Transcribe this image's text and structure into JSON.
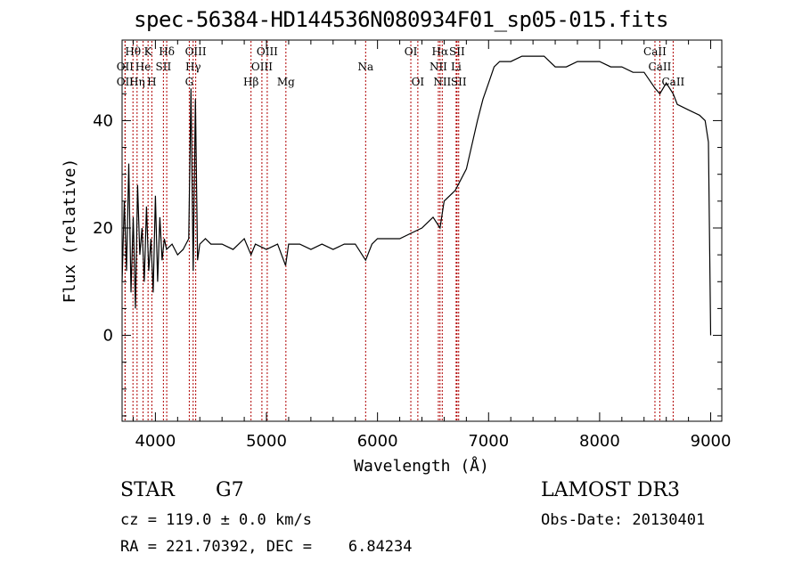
{
  "title": "spec-56384-HD144536N080934F01_sp05-015.fits",
  "info": {
    "object_class": "STAR",
    "subclass": "G7",
    "survey": "LAMOST DR3",
    "cz": "cz = 119.0 ± 0.0 km/s",
    "obs_date": "Obs-Date: 20130401",
    "radec": "RA = 221.70392, DEC =    6.84234"
  },
  "chart_data": {
    "type": "line",
    "xlabel": "Wavelength (Å)",
    "ylabel": "Flux (relative)",
    "xlim": [
      3700,
      9100
    ],
    "ylim": [
      -16,
      55
    ],
    "xticks": [
      4000,
      5000,
      6000,
      7000,
      8000,
      9000
    ],
    "yticks": [
      0,
      20,
      40
    ],
    "series": [
      {
        "x": [
          3700,
          3720,
          3740,
          3760,
          3780,
          3800,
          3820,
          3840,
          3860,
          3880,
          3900,
          3920,
          3940,
          3960,
          3980,
          4000,
          4020,
          4040,
          4060,
          4080,
          4100,
          4150,
          4200,
          4250,
          4300,
          4320,
          4340,
          4360,
          4380,
          4400,
          4450,
          4500,
          4600,
          4700,
          4800,
          4861,
          4900,
          5000,
          5100,
          5172,
          5200,
          5300,
          5400,
          5500,
          5600,
          5700,
          5800,
          5893,
          5950,
          6000,
          6100,
          6200,
          6300,
          6400,
          6500,
          6563,
          6600,
          6700,
          6800,
          6900,
          6950,
          7000,
          7050,
          7100,
          7200,
          7300,
          7400,
          7500,
          7600,
          7700,
          7800,
          7900,
          8000,
          8100,
          8200,
          8300,
          8400,
          8500,
          8542,
          8600,
          8662,
          8700,
          8800,
          8900,
          8950,
          8980,
          9000
        ],
        "y": [
          10,
          25,
          12,
          32,
          8,
          22,
          5,
          28,
          15,
          20,
          10,
          24,
          12,
          18,
          8,
          26,
          10,
          22,
          14,
          18,
          16,
          17,
          15,
          16,
          18,
          46,
          12,
          44,
          14,
          17,
          18,
          17,
          17,
          16,
          18,
          15,
          17,
          16,
          17,
          13,
          17,
          17,
          16,
          17,
          16,
          17,
          17,
          14,
          17,
          18,
          18,
          18,
          19,
          20,
          22,
          20,
          25,
          27,
          31,
          40,
          44,
          47,
          50,
          51,
          51,
          52,
          52,
          52,
          50,
          50,
          51,
          51,
          51,
          50,
          50,
          49,
          49,
          46,
          45,
          47,
          45,
          43,
          42,
          41,
          40,
          36,
          0
        ]
      }
    ],
    "lines": [
      {
        "label": "Hθ",
        "wl": 3798,
        "row": 0
      },
      {
        "label": "OII",
        "wl": 3727,
        "row": 1
      },
      {
        "label": "OII",
        "wl": 3727,
        "row": 2
      },
      {
        "label": "K",
        "wl": 3934,
        "row": 0
      },
      {
        "label": "He",
        "wl": 3889,
        "row": 1
      },
      {
        "label": "Hη",
        "wl": 3835,
        "row": 2
      },
      {
        "label": "Hδ",
        "wl": 4102,
        "row": 0
      },
      {
        "label": "SII",
        "wl": 4072,
        "row": 1
      },
      {
        "label": "H",
        "wl": 3968,
        "row": 2
      },
      {
        "label": "OIII",
        "wl": 4363,
        "row": 0
      },
      {
        "label": "Hγ",
        "wl": 4340,
        "row": 1
      },
      {
        "label": "G",
        "wl": 4305,
        "row": 2
      },
      {
        "label": "Hβ",
        "wl": 4861,
        "row": 2
      },
      {
        "label": "OIII",
        "wl": 4959,
        "row": 1
      },
      {
        "label": "OIII",
        "wl": 5007,
        "row": 0
      },
      {
        "label": "Mg",
        "wl": 5175,
        "row": 2
      },
      {
        "label": "Na",
        "wl": 5893,
        "row": 1
      },
      {
        "label": "OI",
        "wl": 6300,
        "row": 0
      },
      {
        "label": "OI",
        "wl": 6363,
        "row": 2
      },
      {
        "label": "Hα",
        "wl": 6563,
        "row": 0
      },
      {
        "label": "NII",
        "wl": 6548,
        "row": 1
      },
      {
        "label": "NII",
        "wl": 6583,
        "row": 2
      },
      {
        "label": "SII",
        "wl": 6716,
        "row": 0
      },
      {
        "label": "Li",
        "wl": 6708,
        "row": 1
      },
      {
        "label": "SII",
        "wl": 6731,
        "row": 2
      },
      {
        "label": "CaII",
        "wl": 8498,
        "row": 0
      },
      {
        "label": "CaII",
        "wl": 8542,
        "row": 1
      },
      {
        "label": "CaII",
        "wl": 8662,
        "row": 2
      }
    ]
  }
}
